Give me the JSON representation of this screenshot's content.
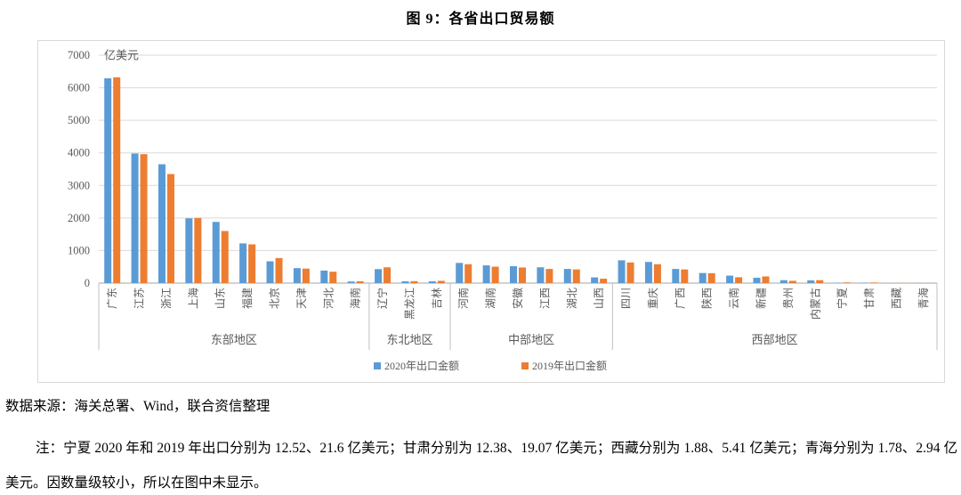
{
  "title": "图 9：各省出口贸易额",
  "source": "数据来源：海关总署、Wind，联合资信整理",
  "note": "注：宁夏 2020 年和 2019 年出口分别为 12.52、21.6 亿美元；甘肃分别为 12.38、19.07 亿美元；西藏分别为 1.88、5.41 亿美元；青海分别为 1.78、2.94 亿美元。因数量级较小，所以在图中未显示。",
  "chart_data": {
    "type": "bar",
    "unit_label": "亿美元",
    "ylim": [
      0,
      7000
    ],
    "ytick_step": 1000,
    "grid": true,
    "legend_position": "bottom",
    "categories": [
      "广东",
      "江苏",
      "浙江",
      "上海",
      "山东",
      "福建",
      "北京",
      "天津",
      "河北",
      "海南",
      "辽宁",
      "黑龙江",
      "吉林",
      "河南",
      "湖南",
      "安徽",
      "江西",
      "湖北",
      "山西",
      "四川",
      "重庆",
      "广西",
      "陕西",
      "云南",
      "新疆",
      "贵州",
      "内蒙古",
      "宁夏",
      "甘肃",
      "西藏",
      "青海"
    ],
    "series": [
      {
        "name": "2020年出口金额",
        "color": "#5B9BD5",
        "values": [
          6290,
          3980,
          3650,
          1990,
          1880,
          1220,
          670,
          460,
          385,
          50,
          430,
          55,
          55,
          620,
          545,
          520,
          485,
          435,
          175,
          700,
          650,
          435,
          310,
          230,
          165,
          90,
          85,
          12.52,
          12.38,
          1.88,
          1.78
        ]
      },
      {
        "name": "2019年出口金额",
        "color": "#ED7D31",
        "values": [
          6320,
          3960,
          3350,
          2000,
          1600,
          1190,
          770,
          445,
          350,
          57,
          485,
          60,
          70,
          580,
          505,
          480,
          435,
          420,
          135,
          635,
          580,
          420,
          305,
          180,
          205,
          70,
          90,
          21.6,
          19.07,
          5.41,
          2.94
        ]
      }
    ],
    "groups": [
      {
        "label": "东部地区",
        "count": 10
      },
      {
        "label": "东北地区",
        "count": 3
      },
      {
        "label": "中部地区",
        "count": 6
      },
      {
        "label": "西部地区",
        "count": 12
      }
    ]
  }
}
